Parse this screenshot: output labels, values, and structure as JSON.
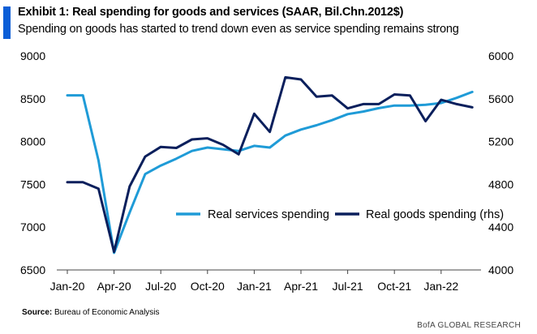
{
  "header": {
    "title": "Exhibit 1: Real spending for goods and services (SAAR, Bil.Chn.2012$)",
    "subtitle": "Spending on goods has started to trend down even as service spending remains strong",
    "accent_color": "#0b5ed7"
  },
  "footer": {
    "source_label": "Source:",
    "source_text": "Bureau of Economic Analysis",
    "brand": "BofA GLOBAL RESEARCH"
  },
  "chart_data": {
    "type": "line",
    "x": [
      "Jan-20",
      "Feb-20",
      "Mar-20",
      "Apr-20",
      "May-20",
      "Jun-20",
      "Jul-20",
      "Aug-20",
      "Sep-20",
      "Oct-20",
      "Nov-20",
      "Dec-20",
      "Jan-21",
      "Feb-21",
      "Mar-21",
      "Apr-21",
      "May-21",
      "Jun-21",
      "Jul-21",
      "Aug-21",
      "Sep-21",
      "Oct-21",
      "Nov-21",
      "Dec-21",
      "Jan-22",
      "Feb-22",
      "Mar-22"
    ],
    "x_tick_labels": [
      "Jan-20",
      "Apr-20",
      "Jul-20",
      "Oct-20",
      "Jan-21",
      "Apr-21",
      "Jul-21",
      "Oct-21",
      "Jan-22"
    ],
    "y_left": {
      "ticks": [
        6500,
        7000,
        7500,
        8000,
        8500,
        9000
      ],
      "range": [
        6500,
        9000
      ]
    },
    "y_right": {
      "ticks": [
        4000,
        4400,
        4800,
        5200,
        5600,
        6000
      ],
      "range": [
        4000,
        6000
      ]
    },
    "legend_position": "center-right",
    "series": [
      {
        "name": "Real services spending",
        "axis": "left",
        "color": "#1f9bd7",
        "values": [
          8540,
          8540,
          7780,
          6700,
          7170,
          7620,
          7720,
          7800,
          7890,
          7930,
          7910,
          7890,
          7950,
          7930,
          8070,
          8140,
          8190,
          8250,
          8320,
          8350,
          8390,
          8420,
          8420,
          8430,
          8450,
          8510,
          8580
        ]
      },
      {
        "name": "Real goods spending (rhs)",
        "axis": "right",
        "color": "#0a1f5c",
        "values": [
          4820,
          4820,
          4760,
          4170,
          4780,
          5060,
          5150,
          5140,
          5220,
          5230,
          5170,
          5080,
          5460,
          5290,
          5800,
          5780,
          5620,
          5630,
          5510,
          5550,
          5550,
          5640,
          5630,
          5390,
          5590,
          5550,
          5520
        ]
      }
    ]
  }
}
